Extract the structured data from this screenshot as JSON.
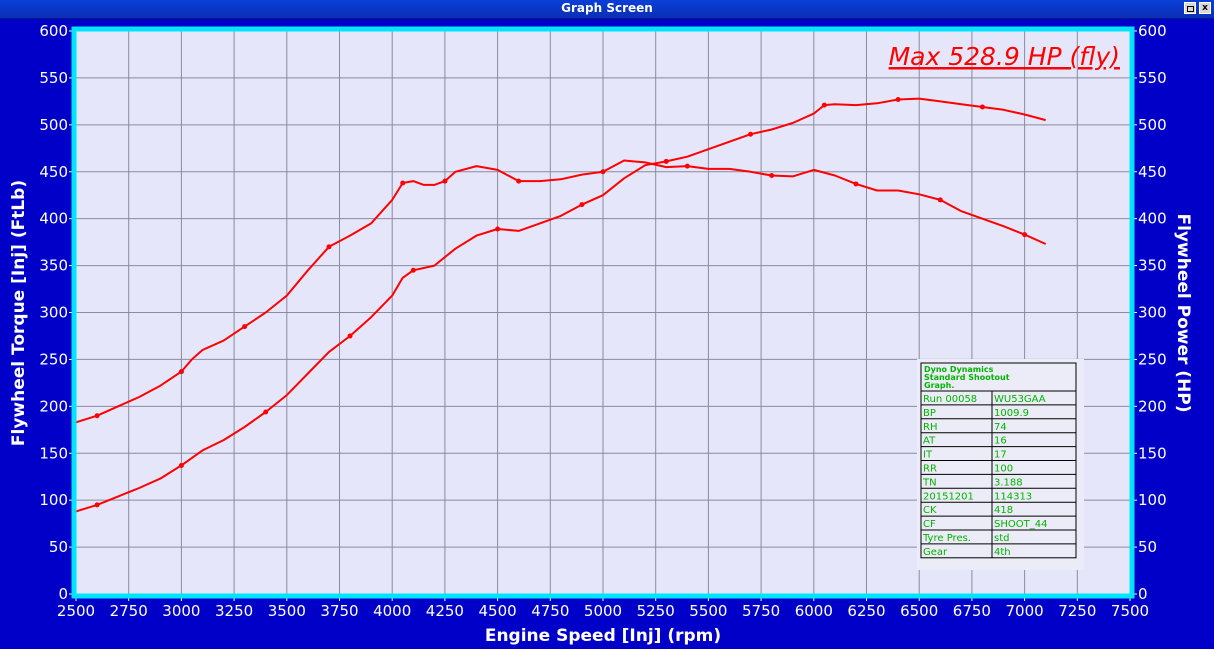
{
  "window": {
    "title": "Graph Screen",
    "close_label": "x"
  },
  "colors": {
    "background": "#0000c8",
    "plot_area": "#e6e6fa",
    "plot_border": "#00e5ff",
    "grid": "#8a8aa0",
    "curve": "#ff0000",
    "annotation": "#ff0000",
    "table_text": "#00b400"
  },
  "annotation": "Max 528.9 HP (fly)",
  "chart_data": {
    "type": "line",
    "xlabel": "Engine Speed [Inj] (rpm)",
    "ylabel": "Flywheel Torque [Inj] (FtLb)",
    "y2label": "Flywheel Power (HP)",
    "xlim": [
      2500,
      7500
    ],
    "ylim": [
      0,
      600
    ],
    "y2lim": [
      0,
      600
    ],
    "x_ticks": [
      2500,
      2750,
      3000,
      3250,
      3500,
      3750,
      4000,
      4250,
      4500,
      4750,
      5000,
      5250,
      5500,
      5750,
      6000,
      6250,
      6500,
      6750,
      7000,
      7250,
      7500
    ],
    "y_ticks": [
      0,
      50,
      100,
      150,
      200,
      250,
      300,
      350,
      400,
      450,
      500,
      550,
      600
    ],
    "grid": true,
    "series": [
      {
        "x": [
          2500,
          2600,
          2700,
          2800,
          2900,
          3000,
          3050,
          3100,
          3200,
          3300,
          3400,
          3500,
          3600,
          3700,
          3800,
          3900,
          4000,
          4050,
          4100,
          4150,
          4200,
          4250,
          4300,
          4400,
          4500,
          4600,
          4700,
          4800,
          4900,
          5000,
          5100,
          5200,
          5300,
          5400,
          5500,
          5600,
          5700,
          5800,
          5900,
          6000,
          6100,
          6200,
          6300,
          6400,
          6500,
          6600,
          6700,
          6800,
          6900,
          7000,
          7100
        ],
        "values": [
          183,
          190,
          200,
          210,
          222,
          237,
          250,
          260,
          270,
          285,
          300,
          318,
          345,
          370,
          382,
          395,
          420,
          438,
          440,
          436,
          436,
          440,
          450,
          456,
          452,
          440,
          440,
          442,
          447,
          450,
          462,
          460,
          455,
          456,
          453,
          453,
          450,
          446,
          445,
          452,
          446,
          437,
          430,
          430,
          426,
          420,
          408,
          400,
          392,
          383,
          373
        ]
      },
      {
        "x": [
          2500,
          2600,
          2700,
          2800,
          2900,
          3000,
          3100,
          3200,
          3300,
          3400,
          3500,
          3600,
          3700,
          3800,
          3900,
          4000,
          4050,
          4100,
          4200,
          4300,
          4400,
          4500,
          4600,
          4700,
          4800,
          4900,
          5000,
          5100,
          5200,
          5300,
          5400,
          5500,
          5600,
          5700,
          5800,
          5900,
          6000,
          6050,
          6100,
          6200,
          6300,
          6400,
          6500,
          6600,
          6700,
          6800,
          6900,
          7000,
          7100
        ],
        "values": [
          88,
          95,
          104,
          113,
          123,
          137,
          153,
          164,
          178,
          194,
          212,
          235,
          258,
          275,
          295,
          318,
          337,
          345,
          350,
          368,
          382,
          389,
          387,
          395,
          403,
          415,
          425,
          443,
          457,
          461,
          466,
          474,
          482,
          490,
          495,
          502,
          512,
          521,
          522,
          521,
          523,
          527,
          528,
          525,
          522,
          519,
          516,
          511,
          505
        ]
      }
    ]
  },
  "info_table": {
    "header": [
      "Dyno Dynamics",
      "Standard Shootout",
      "Graph."
    ],
    "rows": [
      [
        "Run 00058",
        "WU53GAA"
      ],
      [
        "BP",
        "1009.9"
      ],
      [
        "RH",
        "74"
      ],
      [
        "AT",
        "16"
      ],
      [
        "IT",
        "17"
      ],
      [
        "RR",
        "100"
      ],
      [
        "TN",
        "3.188"
      ],
      [
        "20151201",
        "114313"
      ],
      [
        "CK",
        "418"
      ],
      [
        "CF",
        "SHOOT_44"
      ],
      [
        "Tyre Pres.",
        "std"
      ],
      [
        "Gear",
        "4th"
      ]
    ]
  }
}
